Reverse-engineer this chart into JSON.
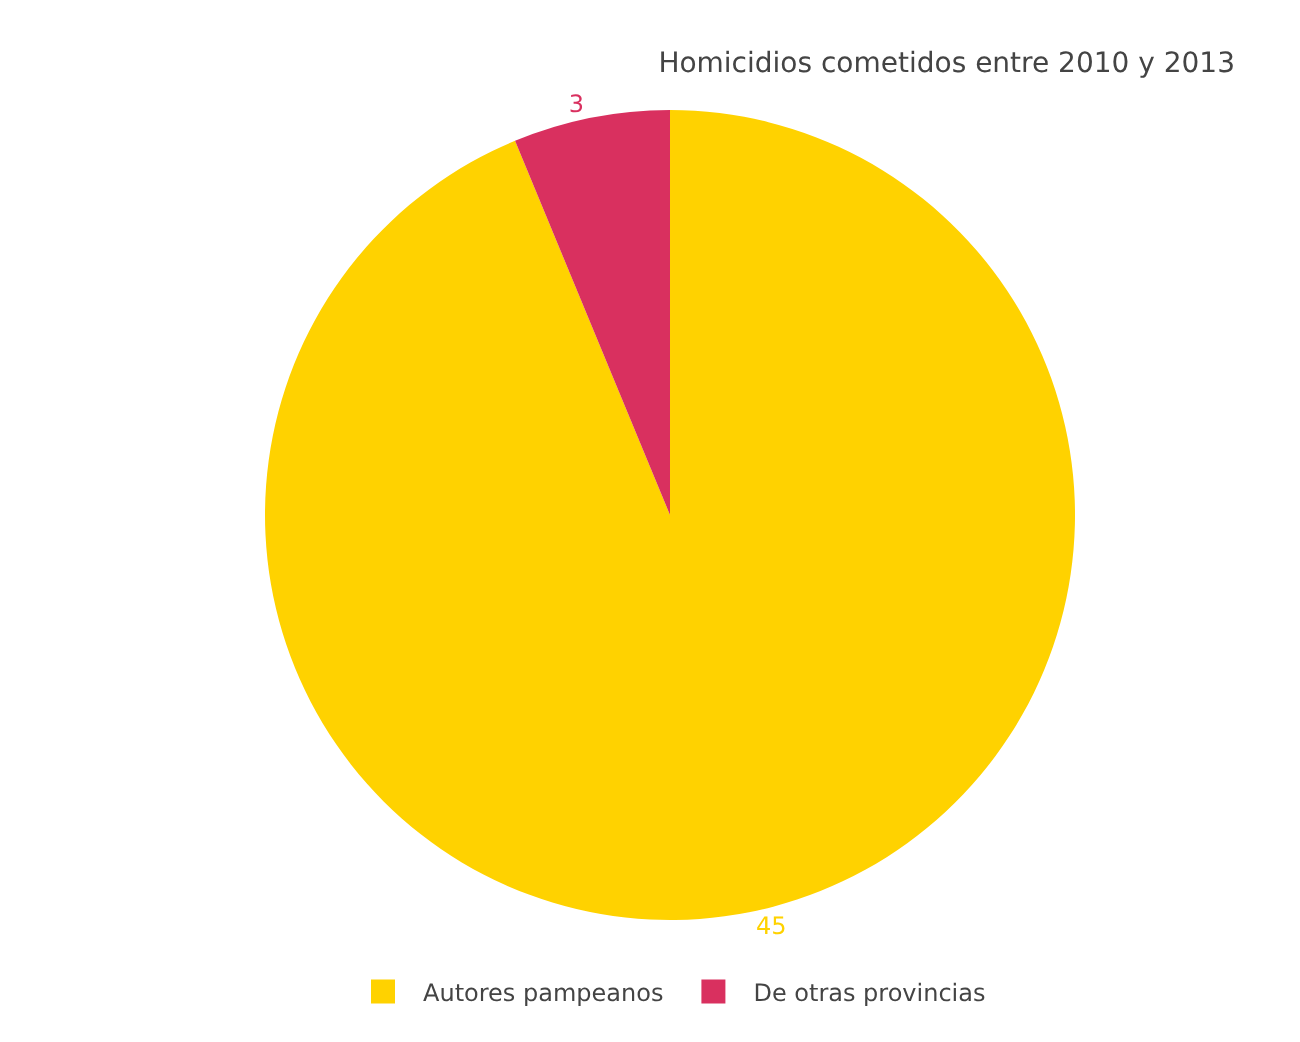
{
  "chart_data": {
    "type": "pie",
    "title": "Homicidios cometidos entre 2010 y 2013",
    "categories": [
      "Autores pampeanos",
      "De otras provincias"
    ],
    "values": [
      45,
      3
    ],
    "colors": [
      "#ffd200",
      "#d9305f"
    ],
    "data_labels": true,
    "legend": "bottom"
  }
}
